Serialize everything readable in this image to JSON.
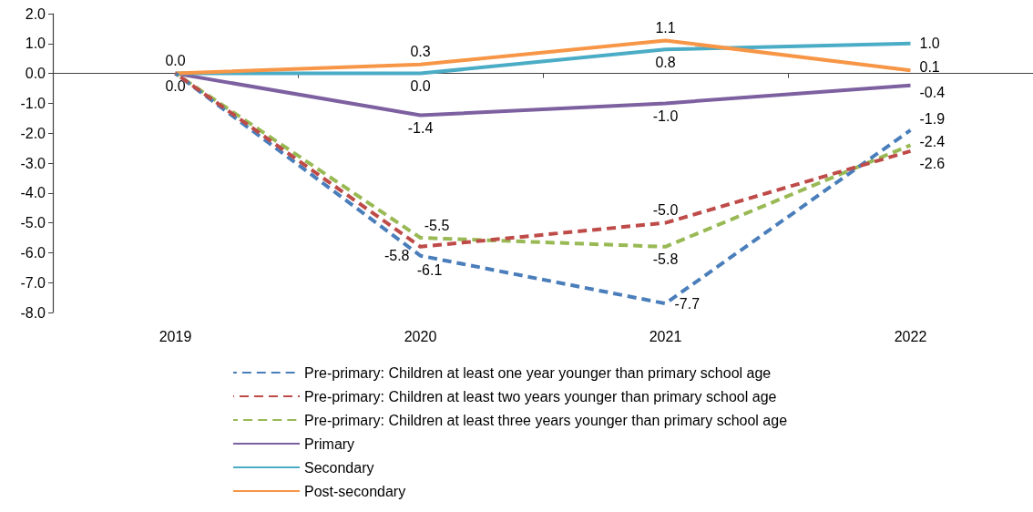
{
  "chart_data": {
    "type": "line",
    "categories": [
      "2019",
      "2020",
      "2021",
      "2022"
    ],
    "ylim": [
      -8,
      2
    ],
    "yticks": [
      {
        "value": 2,
        "label": "2.0"
      },
      {
        "value": 1,
        "label": "1.0"
      },
      {
        "value": 0,
        "label": "0.0"
      },
      {
        "value": -1,
        "label": "-1.0"
      },
      {
        "value": -2,
        "label": "-2.0"
      },
      {
        "value": -3,
        "label": "-3.0"
      },
      {
        "value": -4,
        "label": "-4.0"
      },
      {
        "value": -5,
        "label": "-5.0"
      },
      {
        "value": -6,
        "label": "-6.0"
      },
      {
        "value": -7,
        "label": "-7.0"
      },
      {
        "value": -8,
        "label": "-8.0"
      }
    ],
    "grid": false,
    "legend": "bottom",
    "marker": "none",
    "ref_lines": [
      {
        "axis": "y",
        "value": 0,
        "color": "#404040"
      }
    ],
    "series": [
      {
        "name": "Pre-primary: Children at least one year younger than primary school age",
        "color": "#4a7ebb",
        "line_style": "dashed",
        "values": [
          0,
          -6.1,
          -7.7,
          -1.9
        ],
        "value_labels": [
          null,
          "-6.1",
          "-7.7",
          "-1.9"
        ]
      },
      {
        "name": "Pre-primary: Children at least two years younger than primary school age",
        "color": "#be4b48",
        "line_style": "dashed",
        "values": [
          0,
          -5.8,
          -5.0,
          -2.6
        ],
        "value_labels": [
          null,
          "-5.8",
          "-5.0",
          "-2.6"
        ]
      },
      {
        "name": "Pre-primary: Children at least three years younger than primary school age",
        "color": "#98b954",
        "line_style": "dashed",
        "values": [
          0,
          -5.5,
          -5.8,
          -2.4
        ],
        "value_labels": [
          null,
          "-5.5",
          "-5.8",
          "-2.4"
        ]
      },
      {
        "name": "Primary",
        "color": "#7d60a0",
        "line_style": "solid",
        "values": [
          0,
          -1.4,
          -1.0,
          -0.4
        ],
        "value_labels": [
          null,
          "-1.4",
          "-1.0",
          "-0.4"
        ]
      },
      {
        "name": "Secondary",
        "color": "#4bacc6",
        "line_style": "solid",
        "values": [
          0,
          0,
          0.8,
          1.0
        ],
        "value_labels": [
          "0.0",
          "0.0",
          "0.8",
          "1.0"
        ]
      },
      {
        "name": "Post-secondary",
        "color": "#f79646",
        "line_style": "solid",
        "values": [
          0,
          0.3,
          1.1,
          0.1
        ],
        "value_labels": [
          "0.0",
          "0.3",
          "1.1",
          "0.1"
        ]
      }
    ]
  }
}
